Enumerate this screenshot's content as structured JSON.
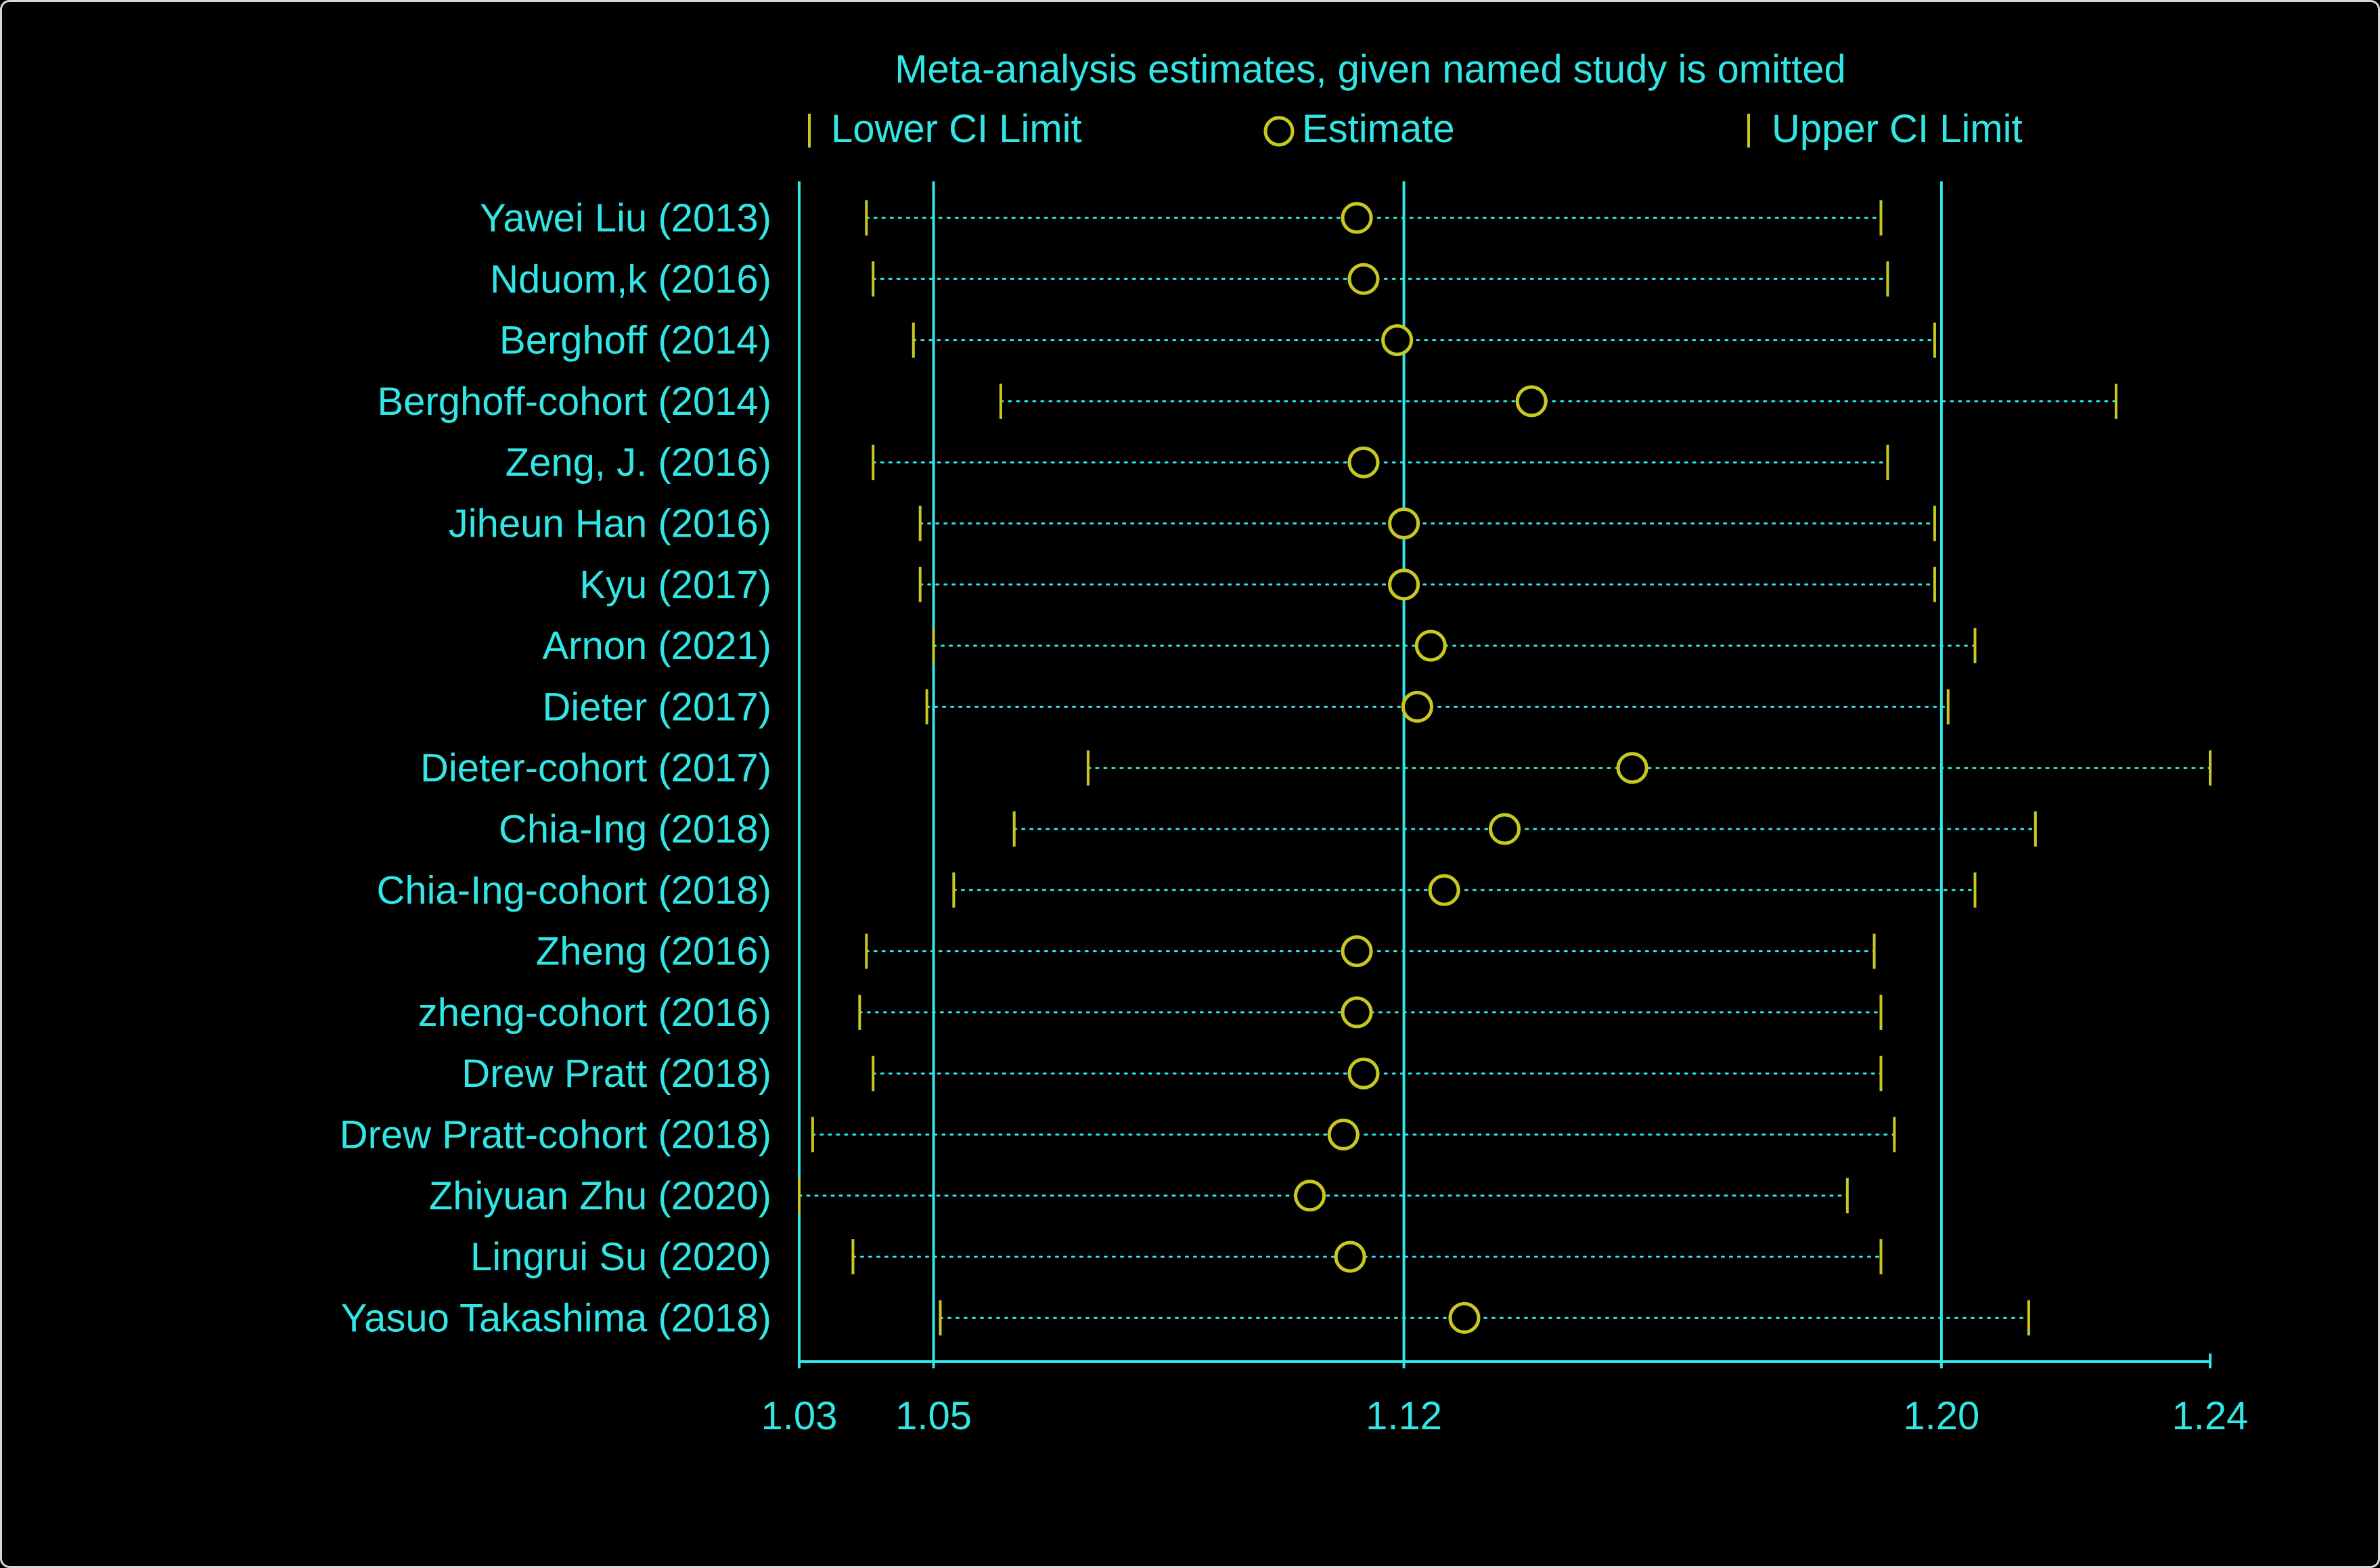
{
  "chart_data": {
    "type": "forest",
    "title": "Meta-analysis estimates, given named study is omitted",
    "legend": {
      "lower": "Lower CI Limit",
      "estimate": "Estimate",
      "upper": "Upper CI Limit"
    },
    "x_ticks": [
      {
        "value": 1.03,
        "label": "1.03"
      },
      {
        "value": 1.05,
        "label": "1.05"
      },
      {
        "value": 1.12,
        "label": "1.12"
      },
      {
        "value": 1.2,
        "label": "1.20"
      },
      {
        "value": 1.24,
        "label": "1.24"
      }
    ],
    "xlim": [
      1.03,
      1.24
    ],
    "reference_lines": [
      1.05,
      1.12,
      1.2
    ],
    "studies": [
      {
        "label": "Yawei Liu (2013)",
        "lower": 1.04,
        "estimate": 1.113,
        "upper": 1.191
      },
      {
        "label": "Nduom,k (2016)",
        "lower": 1.041,
        "estimate": 1.114,
        "upper": 1.192
      },
      {
        "label": "Berghoff (2014)",
        "lower": 1.047,
        "estimate": 1.119,
        "upper": 1.199
      },
      {
        "label": "Berghoff-cohort (2014)",
        "lower": 1.06,
        "estimate": 1.139,
        "upper": 1.226
      },
      {
        "label": "Zeng, J. (2016)",
        "lower": 1.041,
        "estimate": 1.114,
        "upper": 1.192
      },
      {
        "label": "Jiheun Han  (2016)",
        "lower": 1.048,
        "estimate": 1.12,
        "upper": 1.199
      },
      {
        "label": "Kyu  (2017)",
        "lower": 1.048,
        "estimate": 1.12,
        "upper": 1.199
      },
      {
        "label": "Arnon  (2021)",
        "lower": 1.05,
        "estimate": 1.124,
        "upper": 1.205
      },
      {
        "label": "Dieter (2017)",
        "lower": 1.049,
        "estimate": 1.122,
        "upper": 1.201
      },
      {
        "label": "Dieter-cohort (2017)",
        "lower": 1.073,
        "estimate": 1.154,
        "upper": 1.24
      },
      {
        "label": "Chia-Ing  (2018)",
        "lower": 1.062,
        "estimate": 1.135,
        "upper": 1.214
      },
      {
        "label": "Chia-Ing-cohort (2018)",
        "lower": 1.053,
        "estimate": 1.126,
        "upper": 1.205
      },
      {
        "label": "Zheng (2016)",
        "lower": 1.04,
        "estimate": 1.113,
        "upper": 1.19
      },
      {
        "label": "zheng-cohort (2016)",
        "lower": 1.039,
        "estimate": 1.113,
        "upper": 1.191
      },
      {
        "label": "Drew Pratt (2018)",
        "lower": 1.041,
        "estimate": 1.114,
        "upper": 1.191
      },
      {
        "label": "Drew Pratt-cohort (2018)",
        "lower": 1.032,
        "estimate": 1.111,
        "upper": 1.193
      },
      {
        "label": "Zhiyuan Zhu (2020)",
        "lower": 1.03,
        "estimate": 1.106,
        "upper": 1.186
      },
      {
        "label": "Lingrui Su (2020)",
        "lower": 1.038,
        "estimate": 1.112,
        "upper": 1.191
      },
      {
        "label": "Yasuo Takashima (2018)",
        "lower": 1.051,
        "estimate": 1.129,
        "upper": 1.213
      }
    ],
    "colors": {
      "text": "#33e6e6",
      "ci_marks": "#c8c820",
      "frame": "#d8d8d8"
    },
    "grid": false
  }
}
